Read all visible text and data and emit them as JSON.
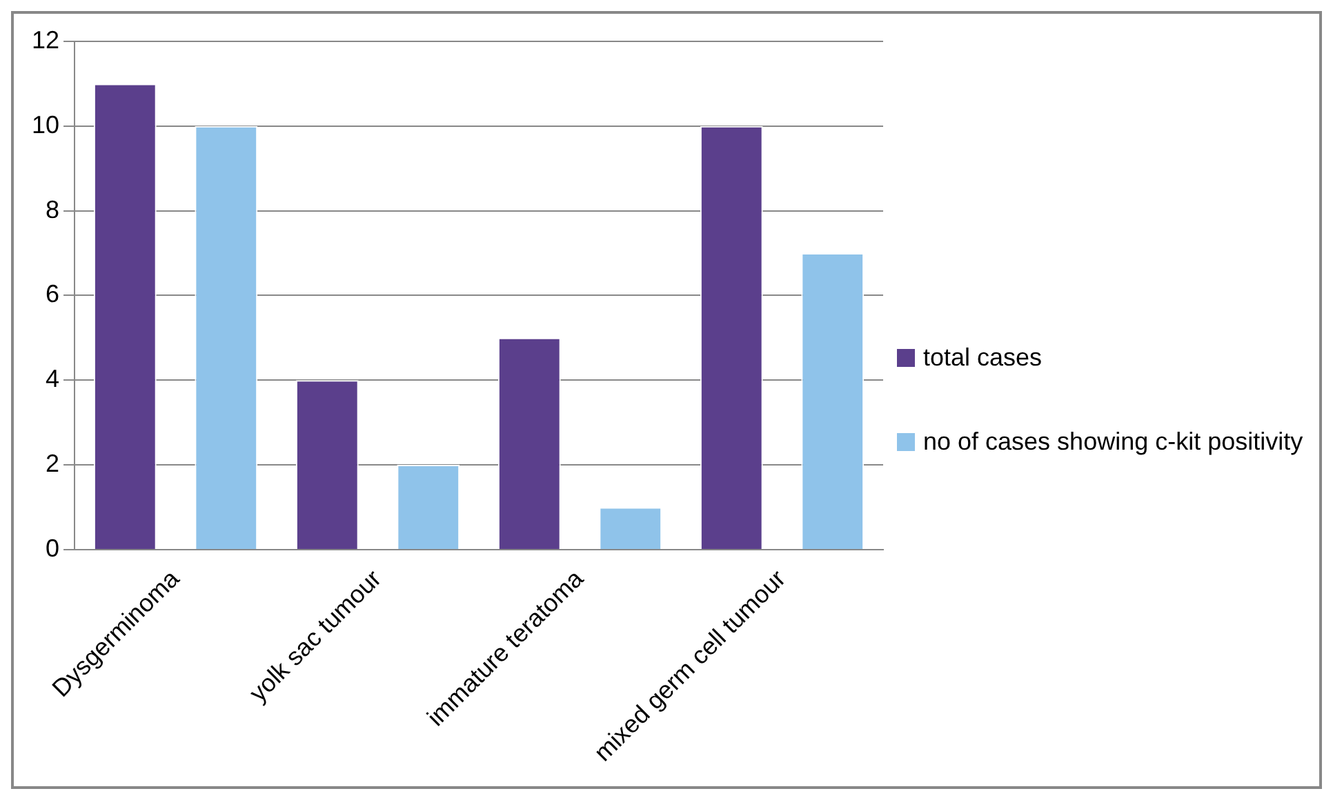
{
  "chart_data": {
    "type": "bar",
    "categories": [
      "Dysgerminoma",
      "yolk sac tumour",
      "immature teratoma",
      "mixed germ cell tumour"
    ],
    "series": [
      {
        "name": "total cases",
        "color": "#5b3f8c",
        "values": [
          11,
          4,
          5,
          10
        ]
      },
      {
        "name": "no of cases showing c-kit positivity",
        "color": "#8fc3ea",
        "values": [
          10,
          2,
          1,
          7
        ]
      }
    ],
    "ylim": [
      0,
      12
    ],
    "yticks": [
      0,
      2,
      4,
      6,
      8,
      10,
      12
    ],
    "grid": "y",
    "legend": "right"
  }
}
